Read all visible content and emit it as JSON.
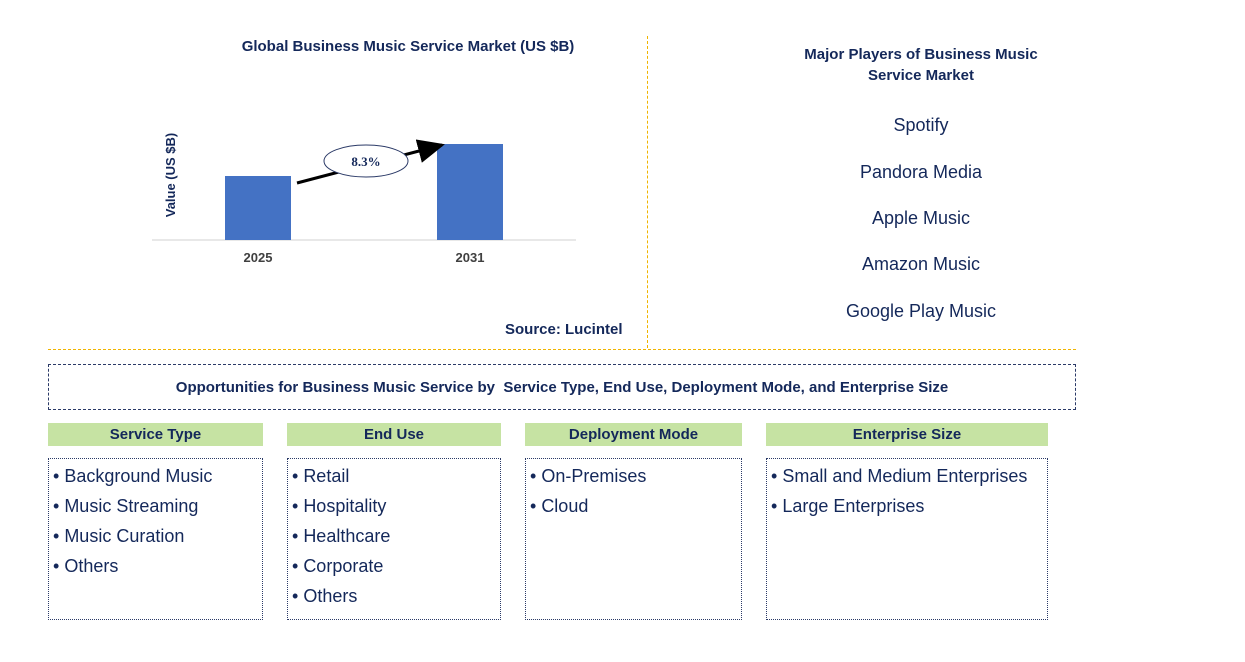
{
  "chart_data": {
    "type": "bar",
    "title": "Global Business Music Service Market (US $B)",
    "ylabel": "Value (US $B)",
    "categories": [
      "2025",
      "2031"
    ],
    "values": [
      1.0,
      1.5
    ],
    "cagr_label": "8.3%",
    "bar_color": "#4472c4",
    "source": "Source: Lucintel"
  },
  "players": {
    "title": "Major Players of Business Music Service Market",
    "items": [
      "Spotify",
      "Pandora Media",
      "Apple Music",
      "Amazon Music",
      "Google Play Music"
    ]
  },
  "opportunities": {
    "title": "Opportunities for Business Music Service by  Service Type, End Use, Deployment Mode, and Enterprise Size",
    "segments": [
      {
        "heading": "Service Type",
        "items": [
          "Background Music",
          "Music Streaming",
          "Music Curation",
          "Others"
        ]
      },
      {
        "heading": "End Use",
        "items": [
          "Retail",
          "Hospitality",
          "Healthcare",
          "Corporate",
          "Others"
        ]
      },
      {
        "heading": "Deployment Mode",
        "items": [
          "On-Premises",
          "Cloud"
        ]
      },
      {
        "heading": "Enterprise Size",
        "items": [
          "Small and Medium Enterprises",
          "Large Enterprises"
        ]
      }
    ]
  },
  "colors": {
    "heading_fill": "#c6e3a3",
    "divider": "#f0b400",
    "text": "#14285a"
  }
}
